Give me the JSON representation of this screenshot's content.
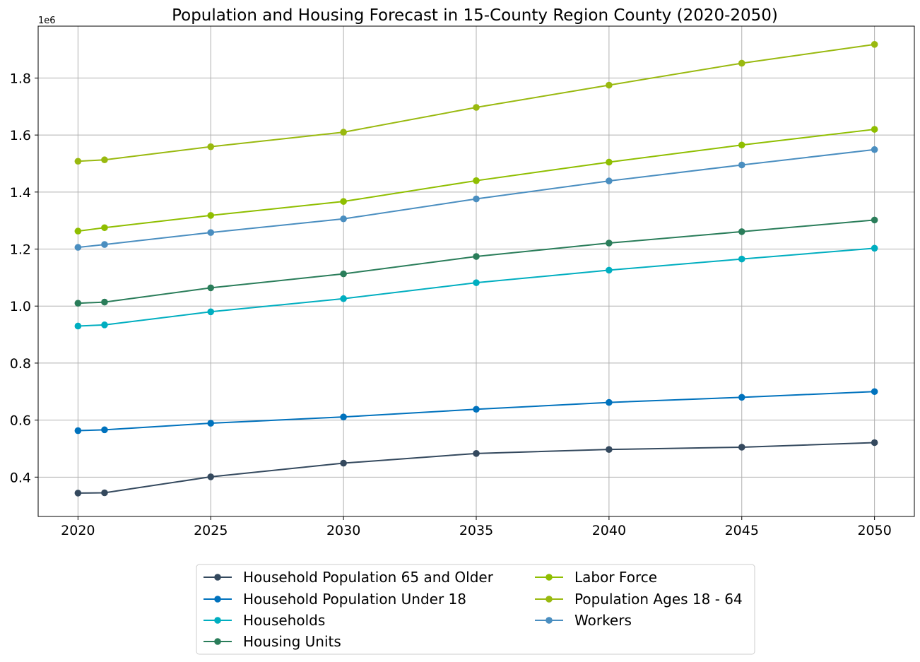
{
  "chart_data": {
    "type": "line",
    "title": "Population and Housing Forecast in 15-County Region County (2020-2050)",
    "xlabel": "",
    "ylabel": "",
    "y_offset_label": "1e6",
    "y_multiplier": 1000000,
    "xlim": [
      2018.5,
      2051.5
    ],
    "ylim": [
      0.262,
      1.982
    ],
    "x_ticks": [
      2020,
      2025,
      2030,
      2035,
      2040,
      2045,
      2050
    ],
    "y_ticks": [
      0.4,
      0.6,
      0.8,
      1.0,
      1.2,
      1.4,
      1.6,
      1.8
    ],
    "y_tick_labels": [
      "0.4",
      "0.6",
      "0.8",
      "1.0",
      "1.2",
      "1.4",
      "1.6",
      "1.8"
    ],
    "grid": true,
    "legend_position": "bottom-center, outside plot, two columns",
    "x": [
      2020,
      2021,
      2025,
      2030,
      2035,
      2040,
      2045,
      2050
    ],
    "series": [
      {
        "name": "Household Population 65 and Older",
        "color": "#34495e",
        "values": [
          0.344,
          0.345,
          0.401,
          0.449,
          0.483,
          0.497,
          0.505,
          0.521
        ]
      },
      {
        "name": "Household Population Under 18",
        "color": "#0072bd",
        "values": [
          0.563,
          0.566,
          0.589,
          0.611,
          0.638,
          0.662,
          0.68,
          0.7
        ]
      },
      {
        "name": "Households",
        "color": "#00aec0",
        "values": [
          0.93,
          0.934,
          0.98,
          1.026,
          1.082,
          1.126,
          1.165,
          1.203
        ]
      },
      {
        "name": "Housing Units",
        "color": "#2a7d5a",
        "values": [
          1.01,
          1.014,
          1.064,
          1.113,
          1.174,
          1.221,
          1.261,
          1.302
        ]
      },
      {
        "name": "Labor Force",
        "color": "#8fbe00",
        "values": [
          1.263,
          1.275,
          1.318,
          1.367,
          1.44,
          1.505,
          1.565,
          1.62
        ]
      },
      {
        "name": "Population Ages 18 - 64",
        "color": "#99b90f",
        "values": [
          1.508,
          1.513,
          1.559,
          1.61,
          1.697,
          1.775,
          1.852,
          1.918
        ]
      },
      {
        "name": "Workers",
        "color": "#4a8ec0",
        "values": [
          1.206,
          1.216,
          1.258,
          1.306,
          1.376,
          1.439,
          1.495,
          1.549
        ]
      }
    ]
  }
}
